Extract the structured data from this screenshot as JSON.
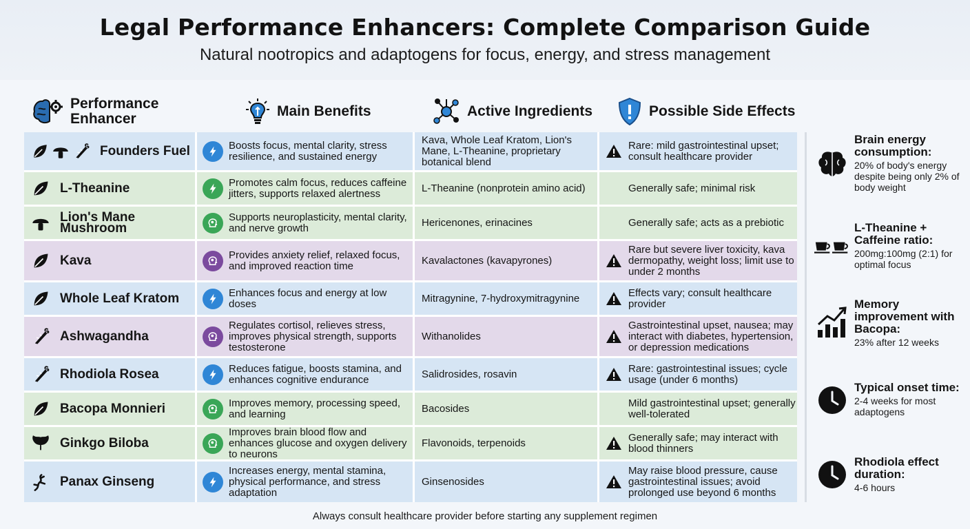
{
  "header": {
    "title": "Legal Performance Enhancers: Complete Comparison Guide",
    "subtitle": "Natural nootropics and adaptogens for focus, energy, and stress management"
  },
  "columns": {
    "enhancer": "Performance Enhancer",
    "benefits": "Main Benefits",
    "ingredients": "Active Ingredients",
    "side_effects": "Possible Side Effects"
  },
  "rows": [
    {
      "name": "Founders Fuel",
      "benefits": "Boosts focus, mental clarity, stress resilience, and sustained energy",
      "ingredients": "Kava, Whole Leaf Kratom, Lion's Mane, L-Theanine, proprietary botanical blend",
      "side_effects": "Rare: mild gastrointestinal upset; consult healthcare provider"
    },
    {
      "name": "L-Theanine",
      "benefits": "Promotes calm focus, reduces caffeine jitters, supports relaxed alertness",
      "ingredients": "L-Theanine (nonprotein amino acid)",
      "side_effects": "Generally safe; minimal risk"
    },
    {
      "name": "Lion's Mane Mushroom",
      "benefits": "Supports neuroplasticity, mental clarity, and nerve growth",
      "ingredients": "Hericenones, erinacines",
      "side_effects": "Generally safe; acts as a prebiotic"
    },
    {
      "name": "Kava",
      "benefits": "Provides anxiety relief, relaxed focus, and improved reaction time",
      "ingredients": "Kavalactones (kavapyrones)",
      "side_effects": "Rare but severe liver toxicity, kava dermopathy, weight loss; limit use to under 2 months"
    },
    {
      "name": "Whole Leaf Kratom",
      "benefits": "Enhances focus and energy at low doses",
      "ingredients": "Mitragynine, 7-hydroxymitragynine",
      "side_effects": "Effects vary; consult healthcare provider"
    },
    {
      "name": "Ashwagandha",
      "benefits": "Regulates cortisol, relieves stress, improves physical strength, supports testosterone",
      "ingredients": "Withanolides",
      "side_effects": "Gastrointestinal upset, nausea; may interact with diabetes, hypertension, or depression medications"
    },
    {
      "name": "Rhodiola Rosea",
      "benefits": "Reduces fatigue, boosts stamina, and enhances cognitive endurance",
      "ingredients": "Salidrosides, rosavin",
      "side_effects": "Rare: gastrointestinal issues; cycle usage (under 6 months)"
    },
    {
      "name": "Bacopa Monnieri",
      "benefits": "Improves memory, processing speed, and learning",
      "ingredients": "Bacosides",
      "side_effects": "Mild gastrointestinal upset; generally well-tolerated"
    },
    {
      "name": "Ginkgo Biloba",
      "benefits": "Improves brain blood flow and enhances glucose and oxygen delivery to neurons",
      "ingredients": "Flavonoids, terpenoids",
      "side_effects": "Generally safe; may interact with blood thinners"
    },
    {
      "name": "Panax Ginseng",
      "benefits": "Increases energy, mental stamina, physical performance, and stress adaptation",
      "ingredients": "Ginsenosides",
      "side_effects": "May raise blood pressure, cause gastrointestinal issues; avoid prolonged use beyond 6 months"
    }
  ],
  "facts": [
    {
      "heading": "Brain energy consumption:",
      "body": "20% of body's energy despite being only 2% of body weight"
    },
    {
      "heading": "L-Theanine + Caffeine ratio:",
      "body": "200mg:100mg (2:1) for optimal focus"
    },
    {
      "heading": "Memory improvement with Bacopa:",
      "body": "23% after 12 weeks"
    },
    {
      "heading": "Typical onset time:",
      "body": "2-4 weeks for most adaptogens"
    },
    {
      "heading": "Rhodiola effect duration:",
      "body": "4-6 hours"
    }
  ],
  "footer": "Always consult healthcare provider before starting any supplement regimen",
  "colors": {
    "blue": "#d6e5f4",
    "green": "#dcebd9",
    "purple": "#e3d9ea",
    "accent_blue": "#2f86d6",
    "accent_green": "#3aa657",
    "accent_purple": "#7b4a9e"
  }
}
